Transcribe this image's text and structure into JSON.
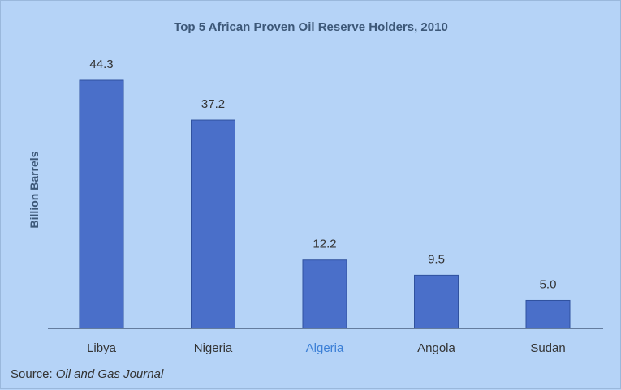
{
  "chart_data": {
    "type": "bar",
    "title": "Top 5 African Proven Oil Reserve Holders, 2010",
    "ylabel": "Billion Barrels",
    "xlabel": "",
    "categories": [
      "Libya",
      "Nigeria",
      "Algeria",
      "Angola",
      "Sudan"
    ],
    "values": [
      44.3,
      37.2,
      12.2,
      9.5,
      5.0
    ],
    "data_labels": [
      "44.3",
      "37.2",
      "12.2",
      "9.5",
      "5.0"
    ],
    "highlighted_category": "Algeria",
    "ylim": [
      0,
      48
    ],
    "grid": false,
    "legend": "none",
    "colors": {
      "background": "#b5d3f7",
      "bar": "#4a6fc9",
      "bar_border": "#30529f",
      "title": "#3d5878",
      "highlight_text": "#3b7fd6"
    }
  },
  "source": {
    "label": "Source:",
    "name": "Oil and Gas Journal"
  }
}
